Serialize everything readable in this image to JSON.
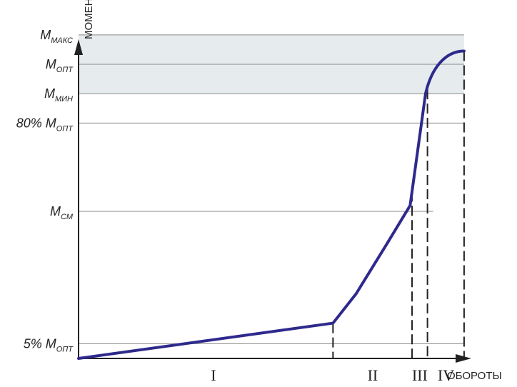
{
  "chart_data": {
    "type": "line",
    "xlabel": "ОБОРОТЫ",
    "ylabel": "МОМЕНТ",
    "colors": {
      "curve": "#2e2a8c",
      "band": "#e6ecee",
      "guide": "#8a8a8a",
      "axis": "#222222"
    },
    "torque_levels": [
      {
        "id": "m-max",
        "main": "M",
        "sub": "МАКС",
        "value": 1.1
      },
      {
        "id": "m-opt",
        "main": "M",
        "sub": "ОПТ",
        "value": 1.0
      },
      {
        "id": "m-min",
        "main": "M",
        "sub": "МИН",
        "value": 0.9
      },
      {
        "id": "m-80",
        "main": "80% M",
        "sub": "ОПТ",
        "value": 0.8
      },
      {
        "id": "m-cm",
        "main": "M",
        "sub": "СМ",
        "value": 0.5
      },
      {
        "id": "m-5",
        "main": "5% M",
        "sub": "ОПТ",
        "value": 0.05
      }
    ],
    "ylim": [
      0,
      1.17
    ],
    "xlim": [
      0,
      1.115
    ],
    "curve": [
      [
        0.0,
        0.0
      ],
      [
        0.66,
        0.12
      ],
      [
        0.72,
        0.22
      ],
      [
        0.8,
        0.39
      ],
      [
        0.86,
        0.52
      ],
      [
        0.9,
        0.9
      ],
      [
        0.92,
        0.96
      ],
      [
        0.95,
        1.01
      ],
      [
        0.99,
        1.04
      ],
      [
        1.0,
        1.045
      ]
    ],
    "phase_boundaries": [
      0.66,
      0.865,
      0.905,
      1.0
    ],
    "zones": [
      {
        "label": "I",
        "center": 0.35
      },
      {
        "label": "II",
        "center": 0.763
      },
      {
        "label": "III",
        "center": 0.885
      },
      {
        "label": "IV",
        "center": 0.953
      }
    ]
  }
}
